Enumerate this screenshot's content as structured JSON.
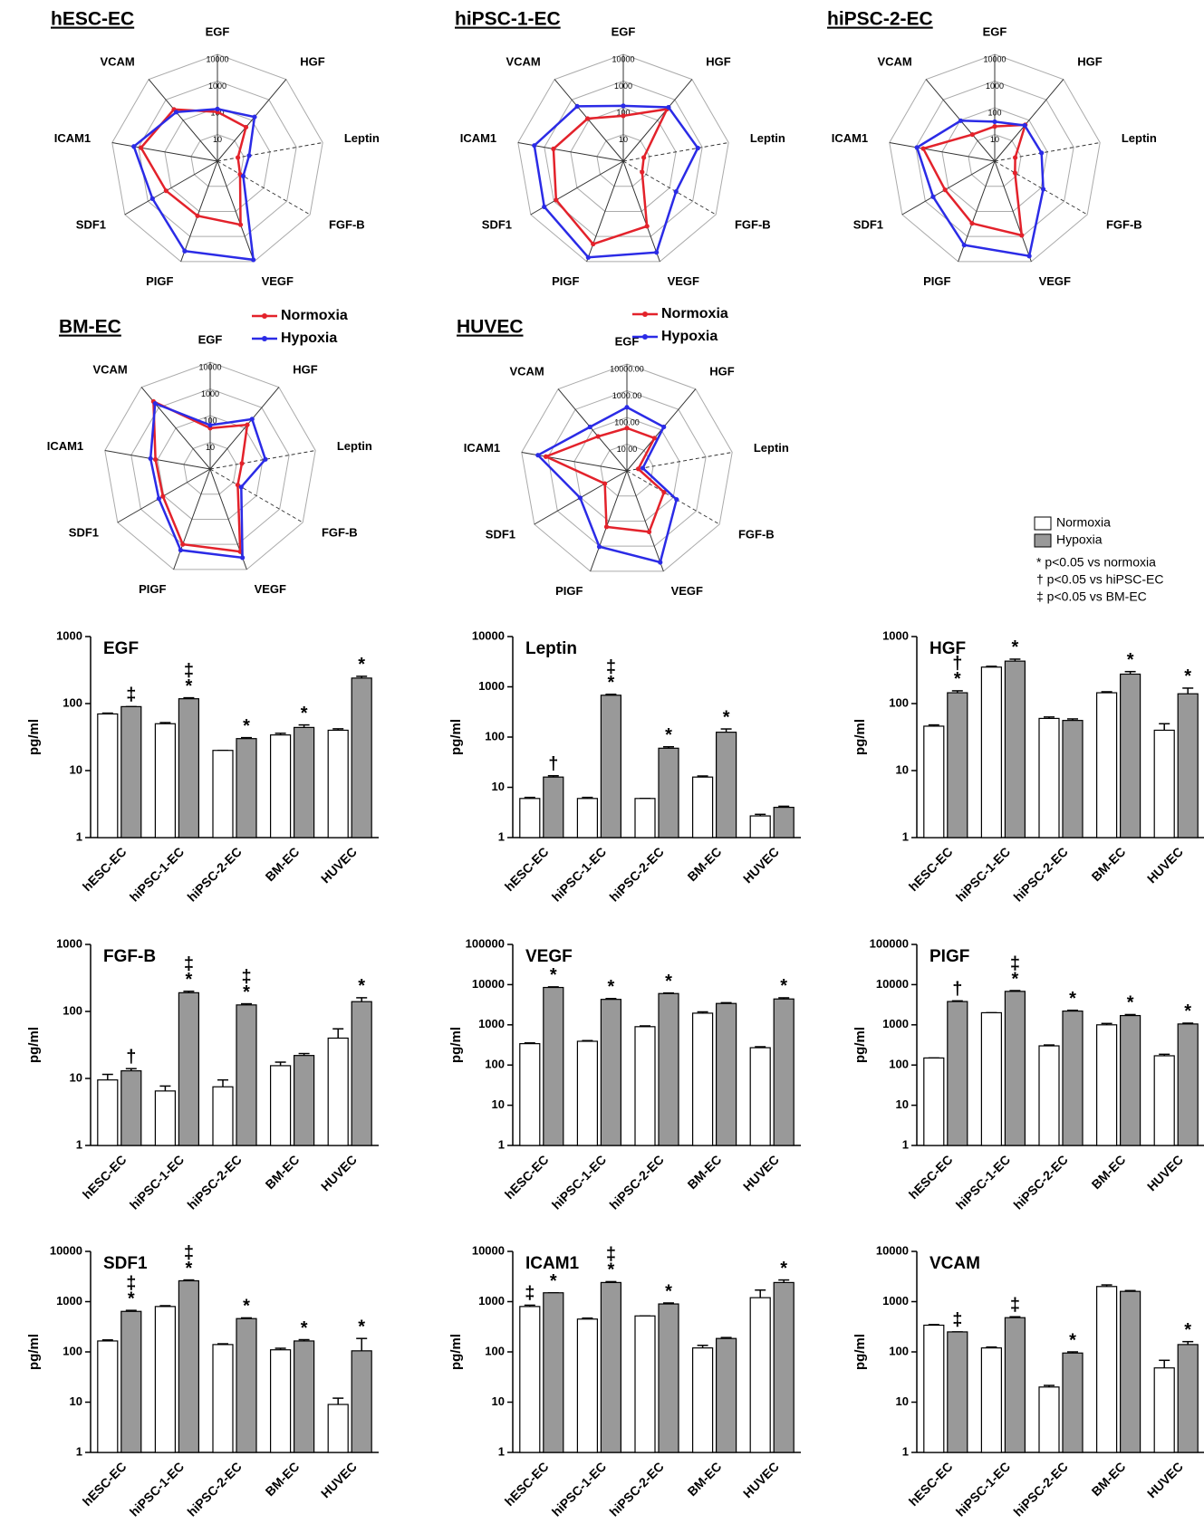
{
  "chart_data": [
    {
      "type": "radar",
      "title": "hESC-EC",
      "axes": [
        "EGF",
        "HGF",
        "Leptin",
        "FGF-B",
        "VEGF",
        "PIGF",
        "SDF1",
        "ICAM1",
        "VCAM"
      ],
      "log": true,
      "rlim": [
        1,
        10000
      ],
      "rticks": [
        1,
        10,
        100,
        1000,
        10000
      ],
      "legend": false,
      "series": [
        {
          "name": "Normoxia",
          "color": "#e3222b",
          "values": [
            70,
            46,
            6,
            9.5,
            340,
            150,
            165,
            800,
            340
          ]
        },
        {
          "name": "Hypoxia",
          "color": "#2b2be6",
          "values": [
            90,
            145,
            16,
            13,
            8500,
            3800,
            640,
            1500,
            250
          ]
        }
      ]
    },
    {
      "type": "radar",
      "title": "hiPSC-1-EC",
      "axes": [
        "EGF",
        "HGF",
        "Leptin",
        "FGF-B",
        "VEGF",
        "PIGF",
        "SDF1",
        "ICAM1",
        "VCAM"
      ],
      "log": true,
      "rlim": [
        1,
        10000
      ],
      "rticks": [
        1,
        10,
        100,
        1000,
        10000
      ],
      "legend": false,
      "series": [
        {
          "name": "Normoxia",
          "color": "#e3222b",
          "values": [
            50,
            350,
            6,
            6.5,
            390,
            2000,
            800,
            450,
            120
          ]
        },
        {
          "name": "Hypoxia",
          "color": "#2b2be6",
          "values": [
            118,
            430,
            680,
            190,
            4300,
            6800,
            2600,
            2400,
            480
          ]
        }
      ]
    },
    {
      "type": "radar",
      "title": "hiPSC-2-EC",
      "axes": [
        "EGF",
        "HGF",
        "Leptin",
        "FGF-B",
        "VEGF",
        "PIGF",
        "SDF1",
        "ICAM1",
        "VCAM"
      ],
      "log": true,
      "rlim": [
        1,
        10000
      ],
      "rticks": [
        1,
        10,
        100,
        1000,
        10000
      ],
      "legend": false,
      "series": [
        {
          "name": "Normoxia",
          "color": "#e3222b",
          "values": [
            20,
            60,
            6,
            7.5,
            900,
            300,
            140,
            520,
            20
          ]
        },
        {
          "name": "Hypoxia",
          "color": "#2b2be6",
          "values": [
            30,
            56,
            60,
            125,
            6000,
            2200,
            460,
            900,
            95
          ]
        }
      ]
    },
    {
      "type": "radar",
      "title": "BM-EC",
      "axes": [
        "EGF",
        "HGF",
        "Leptin",
        "FGF-B",
        "VEGF",
        "PIGF",
        "SDF1",
        "ICAM1",
        "VCAM"
      ],
      "log": true,
      "rlim": [
        1,
        10000
      ],
      "rticks": [
        1,
        10,
        100,
        1000,
        10000
      ],
      "legend": true,
      "series": [
        {
          "name": "Normoxia",
          "color": "#e3222b",
          "values": [
            34,
            145,
            16,
            15.5,
            1950,
            1000,
            110,
            120,
            2000
          ]
        },
        {
          "name": "Hypoxia",
          "color": "#2b2be6",
          "values": [
            44,
            275,
            125,
            22,
            3400,
            1700,
            165,
            185,
            1600
          ]
        }
      ]
    },
    {
      "type": "radar",
      "title": "HUVEC",
      "axes": [
        "EGF",
        "HGF",
        "Leptin",
        "FGF-B",
        "VEGF",
        "PIGF",
        "SDF1",
        "ICAM1",
        "VCAM"
      ],
      "log": true,
      "rlim": [
        1,
        10000
      ],
      "rticks": [
        {
          "value": 1,
          "label": "1.00"
        },
        {
          "value": 10,
          "label": "10.00"
        },
        {
          "value": 100,
          "label": "100.00"
        },
        {
          "value": 1000,
          "label": "1000.00"
        },
        {
          "value": 10000,
          "label": "10000.00"
        }
      ],
      "legend": true,
      "series": [
        {
          "name": "Normoxia",
          "color": "#e3222b",
          "values": [
            40,
            40,
            2.7,
            40,
            270,
            170,
            9,
            1200,
            48
          ]
        },
        {
          "name": "Hypoxia",
          "color": "#2b2be6",
          "values": [
            240,
            140,
            4,
            140,
            4400,
            1050,
            105,
            2400,
            140
          ]
        }
      ]
    },
    {
      "type": "bar",
      "title": "EGF",
      "ylabel": "pg/ml",
      "categories": [
        "hESC-EC",
        "hiPSC-1-EC",
        "hiPSC-2-EC",
        "BM-EC",
        "HUVEC"
      ],
      "log": true,
      "ylim": [
        1,
        1000
      ],
      "yticks": [
        1,
        10,
        100,
        1000
      ],
      "series": [
        {
          "name": "Normoxia",
          "color": "#ffffff",
          "values": [
            70,
            50,
            20,
            34,
            40
          ],
          "errors": [
            2,
            2,
            0,
            2,
            2
          ],
          "annotations": [
            [],
            [],
            [],
            [],
            []
          ]
        },
        {
          "name": "Hypoxia",
          "color": "#999999",
          "values": [
            90,
            118,
            30,
            44,
            240
          ],
          "errors": [
            0,
            4,
            1,
            4,
            15
          ],
          "annotations": [
            [
              "‡"
            ],
            [
              "‡",
              "*"
            ],
            [
              "*"
            ],
            [
              "*"
            ],
            [
              "*"
            ]
          ]
        }
      ]
    },
    {
      "type": "bar",
      "title": "Leptin",
      "ylabel": "pg/ml",
      "categories": [
        "hESC-EC",
        "hiPSC-1-EC",
        "hiPSC-2-EC",
        "BM-EC",
        "HUVEC"
      ],
      "log": true,
      "ylim": [
        1,
        10000
      ],
      "yticks": [
        1,
        10,
        100,
        1000,
        10000
      ],
      "series": [
        {
          "name": "Normoxia",
          "color": "#ffffff",
          "values": [
            6,
            6,
            6,
            16,
            2.7
          ],
          "errors": [
            0.3,
            0.3,
            0,
            0.8,
            0.2
          ],
          "annotations": [
            [],
            [],
            [],
            [],
            []
          ]
        },
        {
          "name": "Hypoxia",
          "color": "#999999",
          "values": [
            16,
            680,
            60,
            125,
            4
          ],
          "errors": [
            1,
            30,
            4,
            20,
            0.2
          ],
          "annotations": [
            [
              "†"
            ],
            [
              "‡",
              "*"
            ],
            [
              "*"
            ],
            [
              "*"
            ],
            []
          ]
        }
      ]
    },
    {
      "type": "bar",
      "title": "HGF",
      "ylabel": "pg/ml",
      "categories": [
        "hESC-EC",
        "hiPSC-1-EC",
        "hiPSC-2-EC",
        "BM-EC",
        "HUVEC"
      ],
      "log": true,
      "ylim": [
        1,
        1000
      ],
      "yticks": [
        1,
        10,
        100,
        1000
      ],
      "series": [
        {
          "name": "Normoxia",
          "color": "#ffffff",
          "values": [
            46,
            350,
            60,
            145,
            40
          ],
          "errors": [
            2,
            10,
            3,
            5,
            10
          ],
          "annotations": [
            [],
            [],
            [],
            [],
            []
          ]
        },
        {
          "name": "Hypoxia",
          "color": "#999999",
          "values": [
            145,
            430,
            56,
            275,
            140
          ],
          "errors": [
            10,
            30,
            3,
            25,
            30
          ],
          "annotations": [
            [
              "†",
              "*"
            ],
            [
              "*"
            ],
            [],
            [
              "*"
            ],
            [
              "*"
            ]
          ]
        }
      ]
    },
    {
      "type": "bar",
      "title": "FGF-B",
      "ylabel": "pg/ml",
      "categories": [
        "hESC-EC",
        "hiPSC-1-EC",
        "hiPSC-2-EC",
        "BM-EC",
        "HUVEC"
      ],
      "log": true,
      "ylim": [
        1,
        1000
      ],
      "yticks": [
        1,
        10,
        100,
        1000
      ],
      "series": [
        {
          "name": "Normoxia",
          "color": "#ffffff",
          "values": [
            9.5,
            6.5,
            7.5,
            15.5,
            40
          ],
          "errors": [
            2,
            1.2,
            2,
            2,
            15
          ],
          "annotations": [
            [],
            [],
            [],
            [],
            []
          ]
        },
        {
          "name": "Hypoxia",
          "color": "#999999",
          "values": [
            13,
            190,
            125,
            22,
            140
          ],
          "errors": [
            1,
            10,
            5,
            1.5,
            20
          ],
          "annotations": [
            [
              "†"
            ],
            [
              "‡",
              "*"
            ],
            [
              "‡",
              "*"
            ],
            [],
            [
              "*"
            ]
          ]
        }
      ]
    },
    {
      "type": "bar",
      "title": "VEGF",
      "ylabel": "pg/ml",
      "categories": [
        "hESC-EC",
        "hiPSC-1-EC",
        "hiPSC-2-EC",
        "BM-EC",
        "HUVEC"
      ],
      "log": true,
      "ylim": [
        1,
        100000
      ],
      "yticks": [
        1,
        10,
        100,
        1000,
        10000,
        100000
      ],
      "series": [
        {
          "name": "Normoxia",
          "color": "#ffffff",
          "values": [
            340,
            390,
            900,
            1950,
            270
          ],
          "errors": [
            15,
            15,
            40,
            150,
            15
          ],
          "annotations": [
            [],
            [],
            [],
            [],
            []
          ]
        },
        {
          "name": "Hypoxia",
          "color": "#999999",
          "values": [
            8500,
            4300,
            6000,
            3400,
            4400
          ],
          "errors": [
            300,
            200,
            200,
            150,
            300
          ],
          "annotations": [
            [
              "*"
            ],
            [
              "*"
            ],
            [
              "*"
            ],
            [],
            [
              "*"
            ]
          ]
        }
      ]
    },
    {
      "type": "bar",
      "title": "PIGF",
      "ylabel": "pg/ml",
      "categories": [
        "hESC-EC",
        "hiPSC-1-EC",
        "hiPSC-2-EC",
        "BM-EC",
        "HUVEC"
      ],
      "log": true,
      "ylim": [
        1,
        100000
      ],
      "yticks": [
        1,
        10,
        100,
        1000,
        10000,
        100000
      ],
      "series": [
        {
          "name": "Normoxia",
          "color": "#ffffff",
          "values": [
            150,
            2000,
            300,
            1000,
            170
          ],
          "errors": [
            0,
            0,
            15,
            80,
            15
          ],
          "annotations": [
            [],
            [],
            [],
            [],
            []
          ]
        },
        {
          "name": "Hypoxia",
          "color": "#999999",
          "values": [
            3800,
            6800,
            2200,
            1700,
            1050
          ],
          "errors": [
            150,
            300,
            100,
            100,
            50
          ],
          "annotations": [
            [
              "†"
            ],
            [
              "‡",
              "*"
            ],
            [
              "*"
            ],
            [
              "*"
            ],
            [
              "*"
            ]
          ]
        }
      ]
    },
    {
      "type": "bar",
      "title": "SDF1",
      "ylabel": "pg/ml",
      "categories": [
        "hESC-EC",
        "hiPSC-1-EC",
        "hiPSC-2-EC",
        "BM-EC",
        "HUVEC"
      ],
      "log": true,
      "ylim": [
        1,
        10000
      ],
      "yticks": [
        1,
        10,
        100,
        1000,
        10000
      ],
      "series": [
        {
          "name": "Normoxia",
          "color": "#ffffff",
          "values": [
            165,
            800,
            140,
            110,
            9
          ],
          "errors": [
            8,
            30,
            5,
            8,
            3
          ],
          "annotations": [
            [],
            [],
            [],
            [],
            []
          ]
        },
        {
          "name": "Hypoxia",
          "color": "#999999",
          "values": [
            640,
            2600,
            460,
            165,
            105
          ],
          "errors": [
            30,
            100,
            15,
            10,
            80
          ],
          "annotations": [
            [
              "‡",
              "*"
            ],
            [
              "‡",
              "*"
            ],
            [
              "*"
            ],
            [
              "*"
            ],
            [
              "*"
            ]
          ]
        }
      ]
    },
    {
      "type": "bar",
      "title": "ICAM1",
      "ylabel": "pg/ml",
      "categories": [
        "hESC-EC",
        "hiPSC-1-EC",
        "hiPSC-2-EC",
        "BM-EC",
        "HUVEC"
      ],
      "log": true,
      "ylim": [
        1,
        10000
      ],
      "yticks": [
        1,
        10,
        100,
        1000,
        10000
      ],
      "series": [
        {
          "name": "Normoxia",
          "color": "#ffffff",
          "values": [
            800,
            450,
            520,
            120,
            1200
          ],
          "errors": [
            50,
            20,
            0,
            15,
            500
          ],
          "annotations": [
            [
              "‡"
            ],
            [],
            [],
            [],
            []
          ]
        },
        {
          "name": "Hypoxia",
          "color": "#999999",
          "values": [
            1500,
            2400,
            900,
            185,
            2400
          ],
          "errors": [
            0,
            100,
            40,
            8,
            300
          ],
          "annotations": [
            [
              "*"
            ],
            [
              "‡",
              "*"
            ],
            [
              "*"
            ],
            [],
            [
              "*"
            ]
          ]
        }
      ]
    },
    {
      "type": "bar",
      "title": "VCAM",
      "ylabel": "pg/ml",
      "categories": [
        "hESC-EC",
        "hiPSC-1-EC",
        "hiPSC-2-EC",
        "BM-EC",
        "HUVEC"
      ],
      "log": true,
      "ylim": [
        1,
        10000
      ],
      "yticks": [
        1,
        10,
        100,
        1000,
        10000
      ],
      "series": [
        {
          "name": "Normoxia",
          "color": "#ffffff",
          "values": [
            340,
            120,
            20,
            2000,
            48
          ],
          "errors": [
            10,
            5,
            1.5,
            150,
            20
          ],
          "annotations": [
            [],
            [],
            [],
            [],
            []
          ]
        },
        {
          "name": "Hypoxia",
          "color": "#999999",
          "values": [
            250,
            480,
            95,
            1600,
            140
          ],
          "errors": [
            0,
            20,
            5,
            60,
            20
          ],
          "annotations": [
            [
              "‡"
            ],
            [
              "‡"
            ],
            [
              "*"
            ],
            [],
            [
              "*"
            ]
          ]
        }
      ]
    }
  ],
  "bar_legend": {
    "notes": [
      "* p<0.05 vs normoxia",
      "† p<0.05 vs hiPSC-EC",
      "‡ p<0.05 vs BM-EC"
    ]
  }
}
